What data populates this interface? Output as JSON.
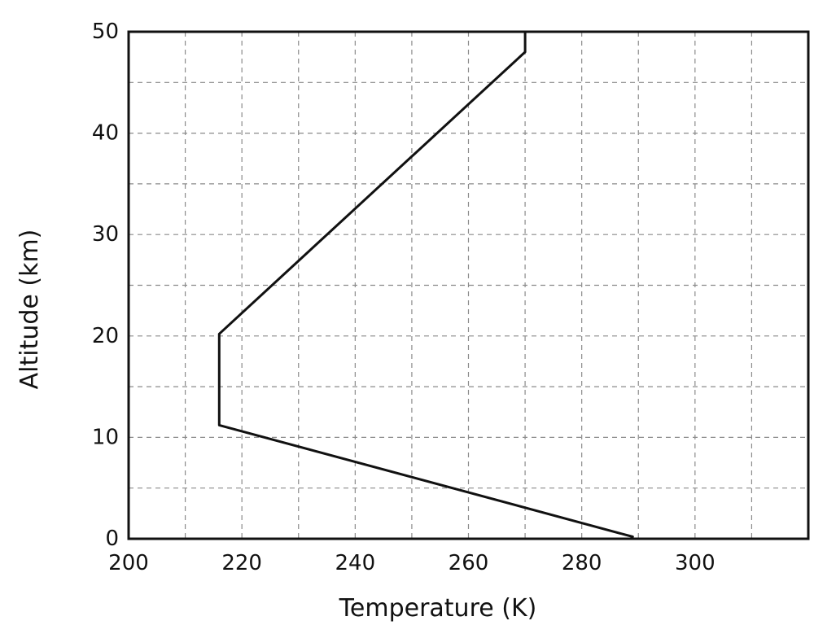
{
  "chart_data": {
    "type": "line",
    "title": "",
    "xlabel": "Temperature (K)",
    "ylabel": "Altitude (km)",
    "xlim": [
      200,
      320
    ],
    "ylim": [
      0,
      50
    ],
    "x_ticks": [
      200,
      220,
      240,
      260,
      280,
      300
    ],
    "x_tick_labels": [
      "200",
      "220",
      "240",
      "260",
      "280",
      "300"
    ],
    "x_grid_step": 10,
    "y_ticks": [
      0,
      10,
      20,
      30,
      40,
      50
    ],
    "y_tick_labels": [
      "0",
      "10",
      "20",
      "30",
      "40",
      "50"
    ],
    "y_grid_step": 5,
    "grid": true,
    "grid_style": "dashed",
    "series": [
      {
        "color": "#111111",
        "x": [
          289,
          216,
          216,
          270,
          270
        ],
        "y": [
          0.2,
          11.2,
          20.2,
          48,
          50
        ]
      }
    ]
  }
}
